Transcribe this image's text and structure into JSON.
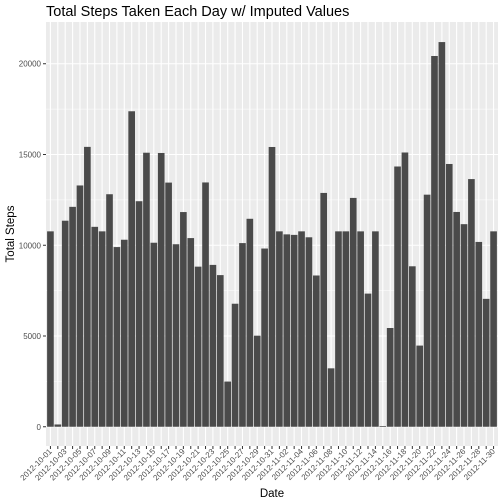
{
  "chart_data": {
    "type": "bar",
    "title": "Total Steps Taken Each Day w/ Imputed Values",
    "xlabel": "Date",
    "ylabel": "Total Steps",
    "ylim": [
      -1060,
      22300
    ],
    "yticks": [
      0,
      5000,
      10000,
      15000,
      20000
    ],
    "ytick_labels": [
      "0",
      "5000",
      "10000",
      "15000",
      "20000"
    ],
    "grid": true,
    "colors": {
      "panel": "#ebebeb",
      "grid_major": "#ffffff",
      "bar": "#4a4a4a",
      "tick": "#333333"
    },
    "categories": [
      "2012-10-01",
      "2012-10-02",
      "2012-10-03",
      "2012-10-04",
      "2012-10-05",
      "2012-10-06",
      "2012-10-07",
      "2012-10-08",
      "2012-10-09",
      "2012-10-10",
      "2012-10-11",
      "2012-10-12",
      "2012-10-13",
      "2012-10-14",
      "2012-10-15",
      "2012-10-16",
      "2012-10-17",
      "2012-10-18",
      "2012-10-19",
      "2012-10-20",
      "2012-10-21",
      "2012-10-22",
      "2012-10-23",
      "2012-10-24",
      "2012-10-25",
      "2012-10-26",
      "2012-10-27",
      "2012-10-28",
      "2012-10-29",
      "2012-10-30",
      "2012-10-31",
      "2012-11-01",
      "2012-11-02",
      "2012-11-03",
      "2012-11-04",
      "2012-11-05",
      "2012-11-06",
      "2012-11-07",
      "2012-11-08",
      "2012-11-09",
      "2012-11-10",
      "2012-11-11",
      "2012-11-12",
      "2012-11-13",
      "2012-11-14",
      "2012-11-15",
      "2012-11-16",
      "2012-11-17",
      "2012-11-18",
      "2012-11-19",
      "2012-11-20",
      "2012-11-21",
      "2012-11-22",
      "2012-11-23",
      "2012-11-24",
      "2012-11-25",
      "2012-11-26",
      "2012-11-27",
      "2012-11-28",
      "2012-11-29",
      "2012-11-30"
    ],
    "x_tick_labels": [
      "2012-10-01",
      "",
      "2012-10-03",
      "",
      "2012-10-05",
      "",
      "2012-10-07",
      "",
      "2012-10-09",
      "",
      "2012-10-11",
      "",
      "2012-10-13",
      "",
      "2012-10-15",
      "",
      "2012-10-17",
      "",
      "2012-10-19",
      "",
      "2012-10-21",
      "",
      "2012-10-23",
      "",
      "2012-10-25",
      "",
      "2012-10-27",
      "",
      "2012-10-29",
      "",
      "2012-10-31",
      "",
      "2012-11-02",
      "",
      "2012-11-04",
      "",
      "2012-11-06",
      "",
      "2012-11-08",
      "",
      "2012-11-10",
      "",
      "2012-11-12",
      "",
      "2012-11-14",
      "",
      "2012-11-16",
      "",
      "2012-11-18",
      "",
      "2012-11-20",
      "",
      "2012-11-22",
      "",
      "2012-11-24",
      "",
      "2012-11-26",
      "",
      "2012-11-28",
      "",
      "2012-11-30"
    ],
    "series": [
      {
        "values": [
          10766,
          126,
          11352,
          12116,
          13294,
          15420,
          11015,
          10766,
          12811,
          9900,
          10304,
          17382,
          12426,
          15098,
          10139,
          15084,
          13452,
          10056,
          11829,
          10395,
          8821,
          13460,
          8918,
          8355,
          2492,
          6778,
          10119,
          11458,
          5018,
          9819,
          15414,
          10766,
          10600,
          10571,
          10766,
          10439,
          8334,
          12883,
          3219,
          10766,
          10766,
          12608,
          10765,
          7336,
          10766,
          41,
          5441,
          14339,
          15110,
          8841,
          4472,
          12787,
          20427,
          21194,
          14478,
          11834,
          11162,
          13646,
          10183,
          7047,
          10766
        ]
      }
    ]
  }
}
